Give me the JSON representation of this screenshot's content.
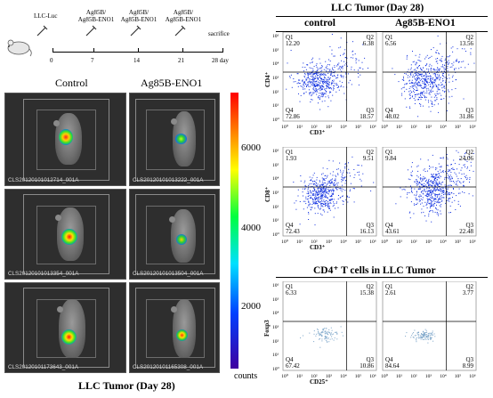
{
  "timeline": {
    "start_label": "LLC-Luc",
    "doses": [
      {
        "label": "Ag85B/\nAg85B-ENO1",
        "day": "7"
      },
      {
        "label": "Ag85B/\nAg85B-ENO1",
        "day": "14"
      },
      {
        "label": "Ag85B/\nAg85B-ENO1",
        "day": "21"
      }
    ],
    "end_label": "sacrifice",
    "start_day": "0",
    "end_day": "28 day"
  },
  "imaging": {
    "col_control": "Control",
    "col_treated": "Ag85B-ENO1",
    "captions": [
      "CLS20120101012714_001A",
      "CLS20120101013222_001A",
      "CLS20120101013354_001A",
      "CLS20120101013504_001A",
      "CLS20120101173643_001A",
      "CLS20120101165308_001A"
    ],
    "colorbar": {
      "ticks": [
        "6000",
        "4000",
        "2000"
      ],
      "unit": "counts"
    },
    "bottom_title": "LLC Tumor (Day 28)"
  },
  "flow": {
    "top_title": "LLC Tumor (Day 28)",
    "col_control": "control",
    "col_treated": "Ag85B-ENO1",
    "section2_title": "CD4⁺ T cells in LLC Tumor",
    "axis_ticks": [
      "10⁰",
      "10¹",
      "10²",
      "10³",
      "10⁴",
      "10⁵",
      "10⁶"
    ],
    "rows": [
      {
        "ylabel": "CD4⁺",
        "xlabel": "CD3⁺",
        "plots": [
          {
            "q1": "12.20",
            "q2": "6.38",
            "q3": "18.57",
            "q4": "72.86"
          },
          {
            "q1": "6.56",
            "q2": "13.56",
            "q3": "31.86",
            "q4": "48.02"
          }
        ]
      },
      {
        "ylabel": "CD8⁺",
        "xlabel": "CD3⁺",
        "plots": [
          {
            "q1": "1.93",
            "q2": "9.51",
            "q3": "16.13",
            "q4": "72.43"
          },
          {
            "q1": "9.84",
            "q2": "24.06",
            "q3": "22.48",
            "q4": "43.61"
          }
        ]
      },
      {
        "ylabel": "Foxp3",
        "xlabel": "CD25⁺",
        "plots": [
          {
            "q1": "6.33",
            "q2": "15.38",
            "q3": "10.86",
            "q4": "67.42"
          },
          {
            "q1": "2.61",
            "q2": "3.77",
            "q3": "8.99",
            "q4": "84.64"
          }
        ]
      }
    ],
    "quadrant_names": [
      "Q1",
      "Q2",
      "Q3",
      "Q4"
    ]
  }
}
